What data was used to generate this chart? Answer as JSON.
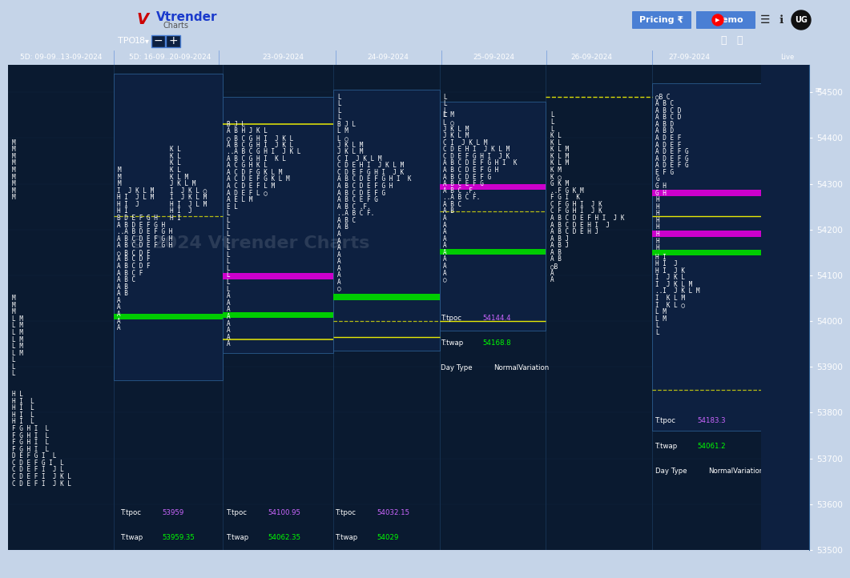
{
  "bg_color": "#c5d4e8",
  "header_bg": "#c5d4e8",
  "toolbar_bg": "#0d2040",
  "chart_bg": "#0a1a30",
  "datebar_bg": "#0d2040",
  "right_panel_bg": "#0d2040",
  "y_axis_min": 53500,
  "y_axis_max": 54560,
  "y_ticks": [
    53500,
    53600,
    53700,
    53800,
    53900,
    54000,
    54100,
    54200,
    54300,
    54400,
    54500
  ],
  "date_labels": [
    "5D: 09-09..13-09-2024",
    "5D: 16-09..20-09-2024",
    "23-09-2024",
    "24-09-2024",
    "25-09-2024",
    "26-09-2024",
    "27-09-2024"
  ],
  "date_xpos": [
    0.07,
    0.215,
    0.365,
    0.505,
    0.645,
    0.775,
    0.905
  ],
  "watermark": "© 2024 Vtrender Charts",
  "green_poc": "#00cc00",
  "magenta_poc": "#cc00cc",
  "yellow_col": "#ffff00",
  "tpoc_color": "#cc66ff",
  "twap_color": "#00ff00",
  "white": "#ffffff",
  "session_box_bg": "#0d2040",
  "session_box_edge": "#2a5a8c"
}
